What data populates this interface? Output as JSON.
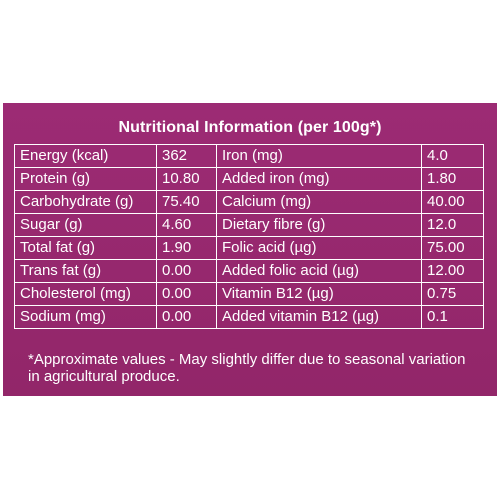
{
  "title": "Nutritional Information (per 100g*)",
  "rows": [
    {
      "n1": "Energy (kcal)",
      "v1": "362",
      "n2": "Iron (mg)",
      "v2": "4.0"
    },
    {
      "n1": "Protein (g)",
      "v1": "10.80",
      "n2": "Added iron (mg)",
      "v2": "1.80"
    },
    {
      "n1": "Carbohydrate (g)",
      "v1": "75.40",
      "n2": "Calcium (mg)",
      "v2": "40.00"
    },
    {
      "n1": "Sugar (g)",
      "v1": "4.60",
      "n2": "Dietary fibre (g)",
      "v2": "12.0"
    },
    {
      "n1": "Total fat (g)",
      "v1": "1.90",
      "n2": "Folic acid (µg)",
      "v2": "75.00"
    },
    {
      "n1": "Trans fat (g)",
      "v1": "0.00",
      "n2": "Added folic acid (µg)",
      "v2": "12.00"
    },
    {
      "n1": "Cholesterol (mg)",
      "v1": "0.00",
      "n2": "Vitamin B12 (µg)",
      "v2": "0.75"
    },
    {
      "n1": "Sodium (mg)",
      "v1": "0.00",
      "n2": "Added vitamin B12 (µg)",
      "v2": "0.1"
    }
  ],
  "footnote": "*Approximate values - May slightly differ due to seasonal variation in agricultural produce.",
  "colors": {
    "panel": "#96286f",
    "text": "#ffffff",
    "background": "#ffffff"
  }
}
